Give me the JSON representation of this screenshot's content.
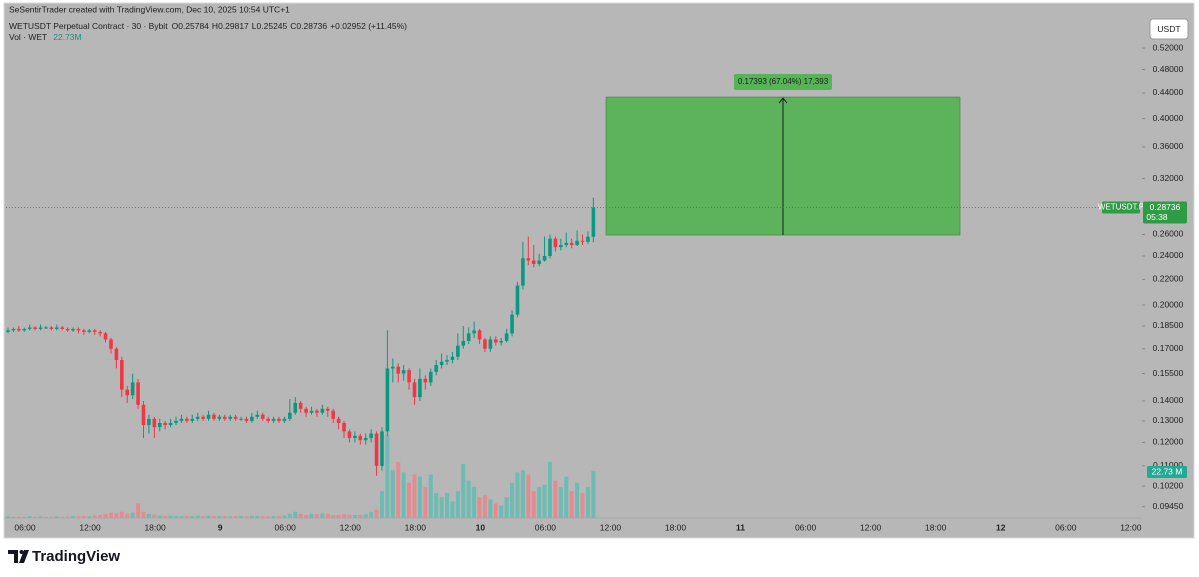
{
  "chart_data": {
    "type": "candlestick",
    "credit": "SeSentirTrader created with TradingView.com, Dec 10, 2025 10:54 UTC+1",
    "symbol_title": "WETUSDT Perpetual Contract · 30 · Bybit",
    "ohlc_letters": [
      "O",
      "H",
      "L",
      "C"
    ],
    "change_label": "+0.02952 (+11.45%)",
    "vol_title": "Vol · WET",
    "vol_value_label": "22.73M",
    "vol_axis_label": "22.73 M",
    "currency": "USDT",
    "symbol_tag": "WETUSDT.P",
    "countdown": "05:38",
    "brand": "TradingView",
    "log": true,
    "grid": false,
    "up_color": "#089981",
    "down_color": "#f23645",
    "vol_up_color": "#6cbcb3",
    "vol_down_color": "#e48b91",
    "ylim": [
      0.0906,
      0.599
    ],
    "yticks": [
      {
        "value": 0.52,
        "label": "0.52000"
      },
      {
        "value": 0.48,
        "label": "0.48000"
      },
      {
        "value": 0.44,
        "label": "0.44000"
      },
      {
        "value": 0.4,
        "label": "0.40000"
      },
      {
        "value": 0.36,
        "label": "0.36000"
      },
      {
        "value": 0.32,
        "label": "0.32000"
      },
      {
        "value": 0.26,
        "label": "0.26000"
      },
      {
        "value": 0.24,
        "label": "0.24000"
      },
      {
        "value": 0.22,
        "label": "0.22000"
      },
      {
        "value": 0.2,
        "label": "0.20000"
      },
      {
        "value": 0.185,
        "label": "0.18500"
      },
      {
        "value": 0.17,
        "label": "0.17000"
      },
      {
        "value": 0.155,
        "label": "0.15500"
      },
      {
        "value": 0.14,
        "label": "0.14000"
      },
      {
        "value": 0.13,
        "label": "0.13000"
      },
      {
        "value": 0.12,
        "label": "0.12000"
      },
      {
        "value": 0.11,
        "label": "0.11000"
      },
      {
        "value": 0.102,
        "label": "0.10200"
      },
      {
        "value": 0.0945,
        "label": "0.09450"
      }
    ],
    "xticks": [
      "06:00",
      "12:00",
      "18:00",
      "9",
      "06:00",
      "12:00",
      "18:00",
      "10",
      "06:00",
      "12:00",
      "18:00",
      "11",
      "06:00",
      "12:00",
      "18:00",
      "12",
      "06:00",
      "12:00"
    ],
    "open": [
      0.181,
      0.182,
      0.183,
      0.182,
      0.183,
      0.184,
      0.183,
      0.184,
      0.184,
      0.183,
      0.184,
      0.183,
      0.182,
      0.183,
      0.182,
      0.181,
      0.182,
      0.181,
      0.18,
      0.176,
      0.17,
      0.163,
      0.146,
      0.143,
      0.15,
      0.138,
      0.128,
      0.131,
      0.127,
      0.129,
      0.128,
      0.129,
      0.13,
      0.131,
      0.13,
      0.131,
      0.132,
      0.131,
      0.133,
      0.131,
      0.132,
      0.131,
      0.132,
      0.131,
      0.131,
      0.13,
      0.132,
      0.133,
      0.131,
      0.13,
      0.131,
      0.13,
      0.131,
      0.134,
      0.139,
      0.136,
      0.134,
      0.135,
      0.134,
      0.136,
      0.135,
      0.131,
      0.129,
      0.125,
      0.122,
      0.123,
      0.121,
      0.122,
      0.124,
      0.11,
      0.125,
      0.158,
      0.159,
      0.155,
      0.157,
      0.15,
      0.142,
      0.152,
      0.15,
      0.156,
      0.16,
      0.162,
      0.163,
      0.165,
      0.172,
      0.175,
      0.18,
      0.182,
      0.176,
      0.17,
      0.176,
      0.174,
      0.175,
      0.18,
      0.193,
      0.215,
      0.238,
      0.236,
      0.233,
      0.236,
      0.24,
      0.256,
      0.248,
      0.25,
      0.252,
      0.25,
      0.254,
      0.253,
      0.25784
    ],
    "high": [
      0.184,
      0.184,
      0.185,
      0.184,
      0.186,
      0.185,
      0.186,
      0.185,
      0.185,
      0.186,
      0.185,
      0.184,
      0.184,
      0.184,
      0.183,
      0.183,
      0.183,
      0.182,
      0.181,
      0.177,
      0.171,
      0.165,
      0.148,
      0.155,
      0.152,
      0.14,
      0.133,
      0.132,
      0.131,
      0.13,
      0.131,
      0.132,
      0.133,
      0.132,
      0.133,
      0.134,
      0.133,
      0.135,
      0.134,
      0.133,
      0.133,
      0.133,
      0.133,
      0.132,
      0.132,
      0.134,
      0.135,
      0.134,
      0.132,
      0.132,
      0.132,
      0.132,
      0.141,
      0.142,
      0.14,
      0.137,
      0.137,
      0.136,
      0.138,
      0.137,
      0.136,
      0.132,
      0.13,
      0.126,
      0.125,
      0.124,
      0.124,
      0.126,
      0.125,
      0.127,
      0.182,
      0.164,
      0.161,
      0.16,
      0.158,
      0.152,
      0.158,
      0.154,
      0.158,
      0.163,
      0.167,
      0.166,
      0.168,
      0.18,
      0.185,
      0.184,
      0.188,
      0.183,
      0.177,
      0.178,
      0.178,
      0.177,
      0.183,
      0.196,
      0.218,
      0.253,
      0.258,
      0.25,
      0.242,
      0.258,
      0.26,
      0.258,
      0.256,
      0.262,
      0.256,
      0.264,
      0.26,
      0.263,
      0.29817
    ],
    "low": [
      0.18,
      0.181,
      0.181,
      0.181,
      0.182,
      0.182,
      0.182,
      0.183,
      0.182,
      0.182,
      0.182,
      0.181,
      0.181,
      0.18,
      0.179,
      0.18,
      0.179,
      0.178,
      0.174,
      0.167,
      0.158,
      0.142,
      0.139,
      0.141,
      0.136,
      0.122,
      0.124,
      0.122,
      0.125,
      0.126,
      0.127,
      0.128,
      0.129,
      0.129,
      0.129,
      0.13,
      0.13,
      0.13,
      0.13,
      0.13,
      0.13,
      0.13,
      0.13,
      0.13,
      0.129,
      0.129,
      0.131,
      0.13,
      0.129,
      0.129,
      0.129,
      0.129,
      0.13,
      0.133,
      0.134,
      0.132,
      0.133,
      0.132,
      0.133,
      0.132,
      0.129,
      0.126,
      0.122,
      0.12,
      0.12,
      0.119,
      0.119,
      0.12,
      0.106,
      0.108,
      0.123,
      0.15,
      0.15,
      0.151,
      0.146,
      0.138,
      0.14,
      0.146,
      0.148,
      0.154,
      0.158,
      0.16,
      0.161,
      0.163,
      0.17,
      0.173,
      0.177,
      0.173,
      0.168,
      0.168,
      0.172,
      0.172,
      0.174,
      0.178,
      0.191,
      0.212,
      0.232,
      0.23,
      0.231,
      0.235,
      0.238,
      0.244,
      0.245,
      0.248,
      0.247,
      0.249,
      0.25,
      0.251,
      0.25245
    ],
    "close": [
      0.182,
      0.183,
      0.182,
      0.183,
      0.184,
      0.183,
      0.184,
      0.184,
      0.183,
      0.184,
      0.183,
      0.182,
      0.183,
      0.182,
      0.181,
      0.182,
      0.181,
      0.18,
      0.176,
      0.17,
      0.163,
      0.146,
      0.143,
      0.15,
      0.138,
      0.128,
      0.131,
      0.127,
      0.129,
      0.128,
      0.129,
      0.13,
      0.131,
      0.13,
      0.131,
      0.132,
      0.131,
      0.133,
      0.131,
      0.132,
      0.131,
      0.132,
      0.131,
      0.131,
      0.13,
      0.132,
      0.133,
      0.131,
      0.13,
      0.131,
      0.13,
      0.131,
      0.134,
      0.139,
      0.136,
      0.134,
      0.135,
      0.134,
      0.136,
      0.135,
      0.131,
      0.129,
      0.125,
      0.122,
      0.123,
      0.121,
      0.122,
      0.124,
      0.11,
      0.125,
      0.158,
      0.159,
      0.155,
      0.157,
      0.15,
      0.142,
      0.152,
      0.15,
      0.156,
      0.16,
      0.162,
      0.163,
      0.165,
      0.172,
      0.175,
      0.18,
      0.182,
      0.176,
      0.17,
      0.176,
      0.174,
      0.175,
      0.18,
      0.193,
      0.215,
      0.238,
      0.236,
      0.233,
      0.236,
      0.24,
      0.256,
      0.248,
      0.25,
      0.252,
      0.25,
      0.254,
      0.253,
      0.25784,
      0.28736
    ],
    "volume": [
      0.8,
      0.6,
      0.7,
      0.5,
      0.9,
      0.6,
      0.7,
      0.5,
      0.6,
      0.8,
      0.6,
      0.7,
      0.9,
      0.8,
      1.0,
      0.9,
      1.2,
      1.5,
      2.0,
      2.5,
      2.2,
      3.0,
      2.0,
      2.5,
      7.0,
      3.0,
      2.0,
      1.5,
      1.2,
      1.0,
      1.2,
      1.0,
      0.9,
      1.1,
      1.0,
      1.2,
      0.9,
      1.1,
      1.0,
      0.9,
      1.0,
      0.8,
      0.9,
      1.0,
      0.8,
      1.1,
      1.0,
      0.9,
      0.8,
      0.9,
      1.0,
      1.2,
      2.0,
      3.0,
      2.0,
      1.5,
      2.0,
      1.8,
      2.2,
      2.0,
      1.5,
      1.5,
      1.8,
      1.6,
      1.4,
      1.5,
      1.8,
      3.0,
      4.0,
      13,
      40,
      23,
      27,
      22,
      17,
      21,
      20,
      15,
      21,
      12,
      10,
      12,
      8,
      13,
      26,
      18,
      15,
      10,
      11,
      9,
      7,
      6,
      10,
      17,
      22,
      23,
      21,
      13,
      15,
      16,
      27,
      18,
      15,
      20,
      13,
      17,
      12,
      15,
      22.73
    ],
    "measure": {
      "from": 0.25944,
      "change": 0.17393,
      "label": "0.17393 (67.04%) 17,393",
      "color": "#5cb35c"
    }
  }
}
